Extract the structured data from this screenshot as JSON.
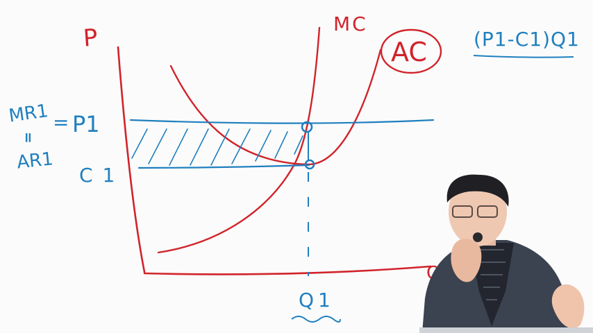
{
  "labels": {
    "price_axis": "P",
    "quantity_axis": "Q",
    "marginal_cost": "MC",
    "average_cost": "AC",
    "profit_formula": "(P1-C1)Q1",
    "mr_line": "MR1",
    "equals_sign": "=",
    "price_level": "P1",
    "ar_line": "AR1",
    "cost_level": "C1",
    "output_level": "Q1"
  },
  "colors": {
    "axes_and_curves": "#d1232a",
    "annotations": "#1f7fbf",
    "board": "#fbfbfb"
  },
  "presenter": {
    "visible": true,
    "icon": "presenter-video-overlay"
  }
}
